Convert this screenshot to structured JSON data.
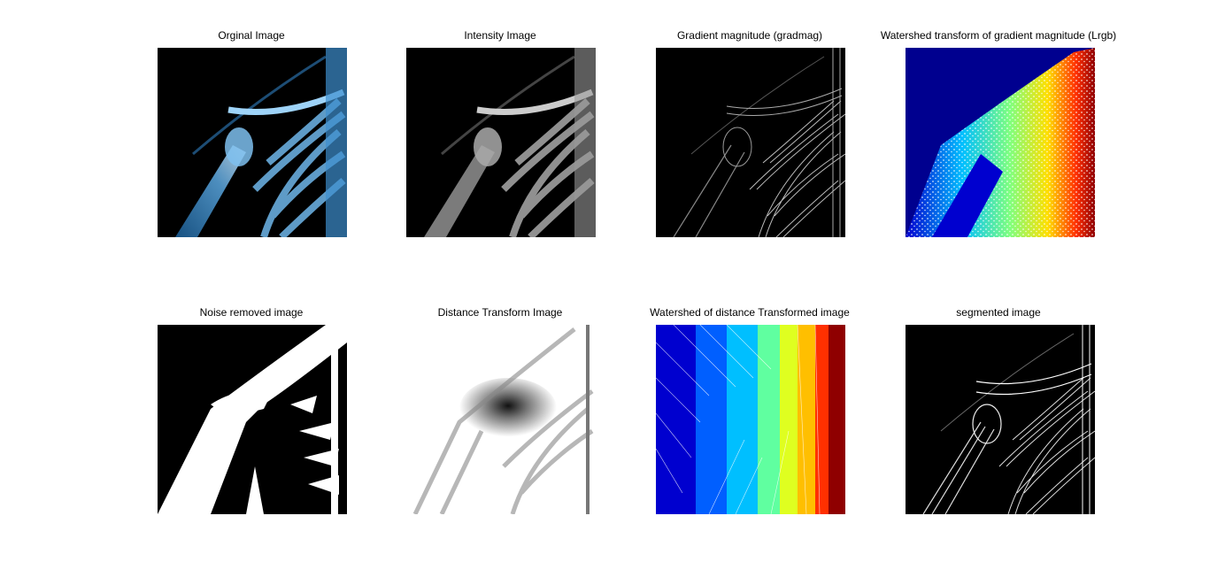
{
  "figure": {
    "panels": [
      {
        "title": "Orginal Image",
        "style": "original-blue-xray"
      },
      {
        "title": "Intensity Image",
        "style": "grayscale-xray"
      },
      {
        "title": "Gradient magnitude (gradmag)",
        "style": "edge-outline"
      },
      {
        "title": "Watershed transform of gradient magnitude (Lrgb)",
        "style": "jet-colormap-speckle"
      },
      {
        "title": "Noise removed image",
        "style": "binary-mask"
      },
      {
        "title": "Distance Transform Image",
        "style": "distance-transform"
      },
      {
        "title": "Watershed of distance Transformed image",
        "style": "jet-colormap-regions"
      },
      {
        "title": "segmented image",
        "style": "segmented-edges"
      }
    ]
  },
  "colors": {
    "background": "#ffffff",
    "xray_blue": "#5aa7e0",
    "jet_dark_blue": "#00008f",
    "jet_red": "#8f0000"
  }
}
